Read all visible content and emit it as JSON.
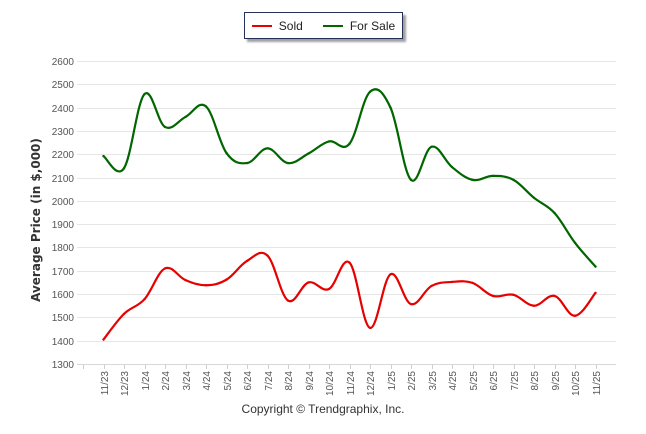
{
  "chart_data": {
    "type": "line",
    "title": "",
    "xlabel": "",
    "ylabel": "Average Price (in $,000)",
    "ylim": [
      1300,
      2600
    ],
    "yticks": [
      1300,
      1400,
      1500,
      1600,
      1700,
      1800,
      1900,
      2000,
      2100,
      2200,
      2300,
      2400,
      2500,
      2600
    ],
    "grid": true,
    "legend_position": "top-center",
    "categories": [
      "11/23",
      "12/23",
      "1/24",
      "2/24",
      "3/24",
      "4/24",
      "5/24",
      "6/24",
      "7/24",
      "8/24",
      "9/24",
      "10/24",
      "11/24",
      "12/24",
      "1/25",
      "2/25",
      "3/25",
      "4/25",
      "5/25",
      "6/25",
      "7/25",
      "8/25",
      "9/25",
      "10/25",
      "11/25"
    ],
    "series": [
      {
        "name": "Sold",
        "color": "#e60000",
        "values": [
          1405,
          1515,
          1578,
          1710,
          1660,
          1638,
          1662,
          1742,
          1765,
          1572,
          1650,
          1622,
          1735,
          1455,
          1685,
          1557,
          1635,
          1652,
          1648,
          1592,
          1597,
          1550,
          1592,
          1507,
          1605
        ]
      },
      {
        "name": "For Sale",
        "color": "#006600",
        "values": [
          2192,
          2140,
          2458,
          2317,
          2360,
          2405,
          2205,
          2162,
          2225,
          2162,
          2203,
          2255,
          2245,
          2468,
          2400,
          2090,
          2232,
          2145,
          2090,
          2107,
          2090,
          2013,
          1948,
          1820,
          1718
        ]
      }
    ]
  },
  "legend": {
    "items": [
      {
        "label": "Sold",
        "color": "#e60000"
      },
      {
        "label": "For Sale",
        "color": "#006600"
      }
    ]
  },
  "footer": {
    "copyright": "Copyright © Trendgraphix, Inc."
  }
}
